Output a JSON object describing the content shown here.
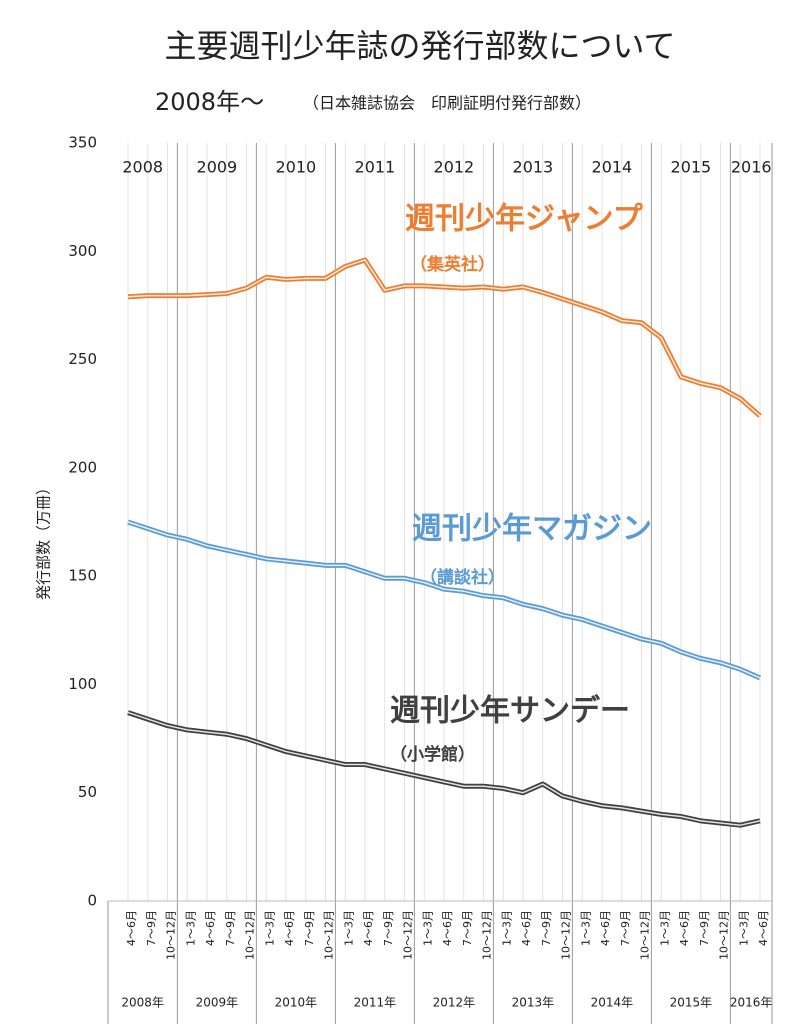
{
  "chart_data": {
    "type": "line",
    "title": "主要週刊少年誌の発行部数について",
    "subtitle": "2008年～",
    "subtitle_note": "（日本雑誌協会　印刷証明付発行部数）",
    "y_label": "発行部数（万冊）",
    "categories": [
      "4～6月",
      "7～9月",
      "10～12月",
      "1～3月",
      "4～6月",
      "7～9月",
      "10～12月",
      "1～3月",
      "4～6月",
      "7～9月",
      "10～12月",
      "1～3月",
      "4～6月",
      "7～9月",
      "10～12月",
      "1～3月",
      "4～6月",
      "7～9月",
      "10～12月",
      "1～3月",
      "4～6月",
      "7～9月",
      "10～12月",
      "1～3月",
      "4～6月",
      "7～9月",
      "10～12月",
      "1～3月",
      "4～6月",
      "7～9月",
      "10～12月",
      "1～3月",
      "4～6月"
    ],
    "year_labels_top": [
      "2008",
      "2009",
      "2010",
      "2011",
      "2012",
      "2013",
      "2014",
      "2015",
      "2016"
    ],
    "year_labels_bottom": [
      "2008年",
      "2009年",
      "2010年",
      "2011年",
      "2012年",
      "2013年",
      "2014年",
      "2015年",
      "2016年"
    ],
    "series": [
      {
        "name": "週刊少年ジャンプ",
        "publisher": "（集英社）",
        "color": "#ed7d31",
        "values": [
          279,
          279.5,
          279.5,
          279.5,
          280,
          280.5,
          283,
          288,
          287,
          287.5,
          287.5,
          293,
          296,
          282,
          284,
          284,
          283.5,
          283,
          283.5,
          282.5,
          283.5,
          281,
          278,
          275,
          272,
          268,
          267,
          260,
          242,
          239,
          237,
          232,
          224
        ]
      },
      {
        "name": "週刊少年マガジン",
        "publisher": "（講談社）",
        "color": "#5b9bd5",
        "values": [
          175,
          172,
          169,
          167,
          164,
          162,
          160,
          158,
          157,
          156,
          155,
          155,
          152,
          149,
          149,
          147,
          144,
          143,
          141,
          140,
          137,
          135,
          132,
          130,
          127,
          124,
          121,
          119,
          115,
          112,
          110,
          107,
          103
        ]
      },
      {
        "name": "週刊少年サンデー",
        "publisher": "（小学館）",
        "color": "#404040",
        "values": [
          87,
          84,
          81,
          79,
          78,
          77,
          75,
          72,
          69,
          67,
          65,
          63,
          63,
          61,
          59,
          57,
          55,
          53,
          53,
          52,
          50,
          54,
          48.5,
          46,
          44,
          43,
          41.5,
          40,
          39,
          37,
          36,
          35,
          37
        ]
      }
    ],
    "ylim": [
      0,
      350
    ],
    "yticks": [
      0,
      50,
      100,
      150,
      200,
      250,
      300,
      350
    ]
  }
}
